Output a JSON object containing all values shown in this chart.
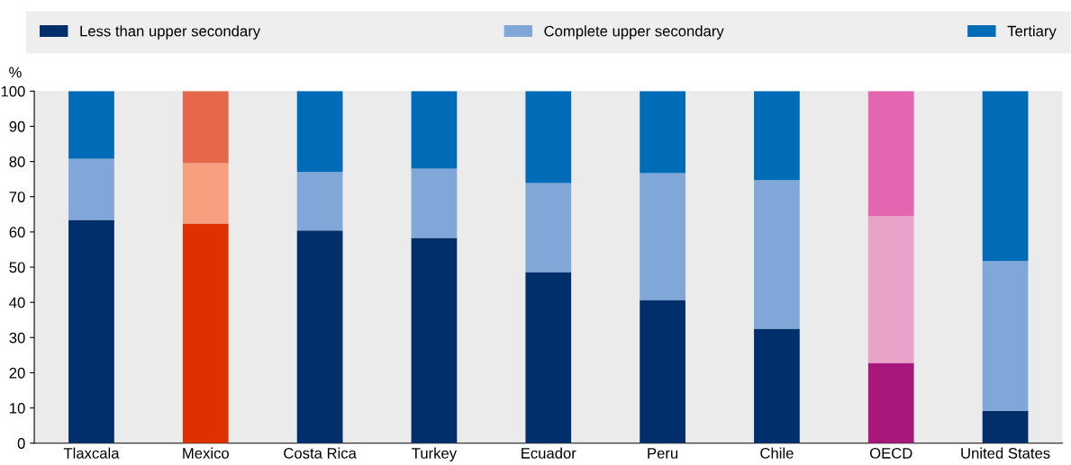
{
  "chart_data": {
    "type": "bar",
    "stacked": true,
    "ylabel": "%",
    "categories": [
      "Tlaxcala",
      "Mexico",
      "Costa Rica",
      "Turkey",
      "Ecuador",
      "Peru",
      "Chile",
      "OECD",
      "United States"
    ],
    "series": [
      {
        "name": "Less than upper secondary",
        "color": "#002f6c",
        "colors": [
          "#002f6c",
          "#e03000",
          "#002f6c",
          "#002f6c",
          "#002f6c",
          "#002f6c",
          "#002f6c",
          "#a8177c",
          "#002f6c"
        ],
        "values": [
          63.4,
          62.4,
          60.4,
          58.3,
          48.6,
          40.7,
          32.5,
          22.8,
          9.2
        ]
      },
      {
        "name": "Complete upper secondary",
        "color": "#7fa8d9",
        "colors": [
          "#7fa8d9",
          "#f6a07f",
          "#7fa8d9",
          "#7fa8d9",
          "#7fa8d9",
          "#7fa8d9",
          "#7fa8d9",
          "#e9a3c9",
          "#7fa8d9"
        ],
        "values": [
          17.4,
          17.1,
          16.6,
          19.7,
          25.3,
          36.0,
          42.2,
          41.7,
          42.5
        ]
      },
      {
        "name": "Tertiary",
        "color": "#006bb6",
        "colors": [
          "#006bb6",
          "#e5684b",
          "#006bb6",
          "#006bb6",
          "#006bb6",
          "#006bb6",
          "#006bb6",
          "#e566b0",
          "#006bb6"
        ],
        "values": [
          19.2,
          20.5,
          23.0,
          22.0,
          26.1,
          23.3,
          25.3,
          35.5,
          48.3
        ]
      }
    ],
    "ylim": [
      0,
      100
    ],
    "yticks": [
      0,
      10,
      20,
      30,
      40,
      50,
      60,
      70,
      80,
      90,
      100
    ],
    "grid": false,
    "legend": "top"
  }
}
